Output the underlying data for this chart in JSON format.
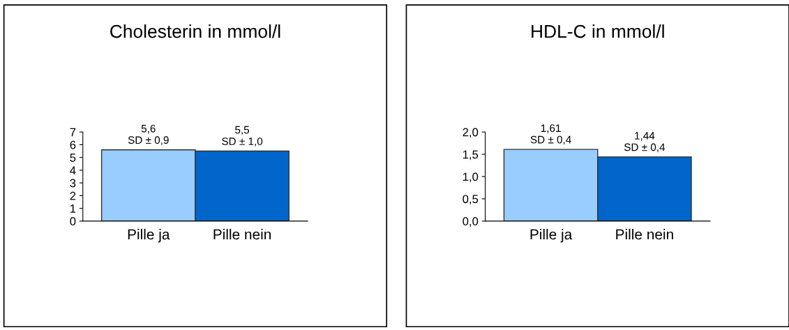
{
  "chart_data": [
    {
      "type": "bar",
      "title": "Cholesterin in mmol/l",
      "categories": [
        "Pille ja",
        "Pille nein"
      ],
      "values": [
        5.6,
        5.5
      ],
      "colors": [
        "#99ccff",
        "#0066cc"
      ],
      "value_labels": [
        "5,6\nSD ± 0,9",
        "5,5\nSD ± 1,0"
      ],
      "ylim": [
        0,
        7
      ],
      "yticks": [
        0,
        1,
        2,
        3,
        4,
        5,
        6,
        7
      ],
      "grid": false,
      "legend": false
    },
    {
      "type": "bar",
      "title": "HDL-C in mmol/l",
      "categories": [
        "Pille ja",
        "Pille nein"
      ],
      "values": [
        1.61,
        1.44
      ],
      "colors": [
        "#99ccff",
        "#0066cc"
      ],
      "value_labels": [
        "1,61\nSD ± 0,4",
        "1,44\nSD ± 0,4"
      ],
      "ylim": [
        0,
        2.0
      ],
      "yticks": [
        {
          "value": 0,
          "label": "0,0"
        },
        {
          "value": 0.5,
          "label": "0,5"
        },
        {
          "value": 1.0,
          "label": "1,0"
        },
        {
          "value": 1.5,
          "label": "1,5"
        },
        {
          "value": 2.0,
          "label": "2,0"
        }
      ],
      "grid": false,
      "legend": false
    }
  ]
}
